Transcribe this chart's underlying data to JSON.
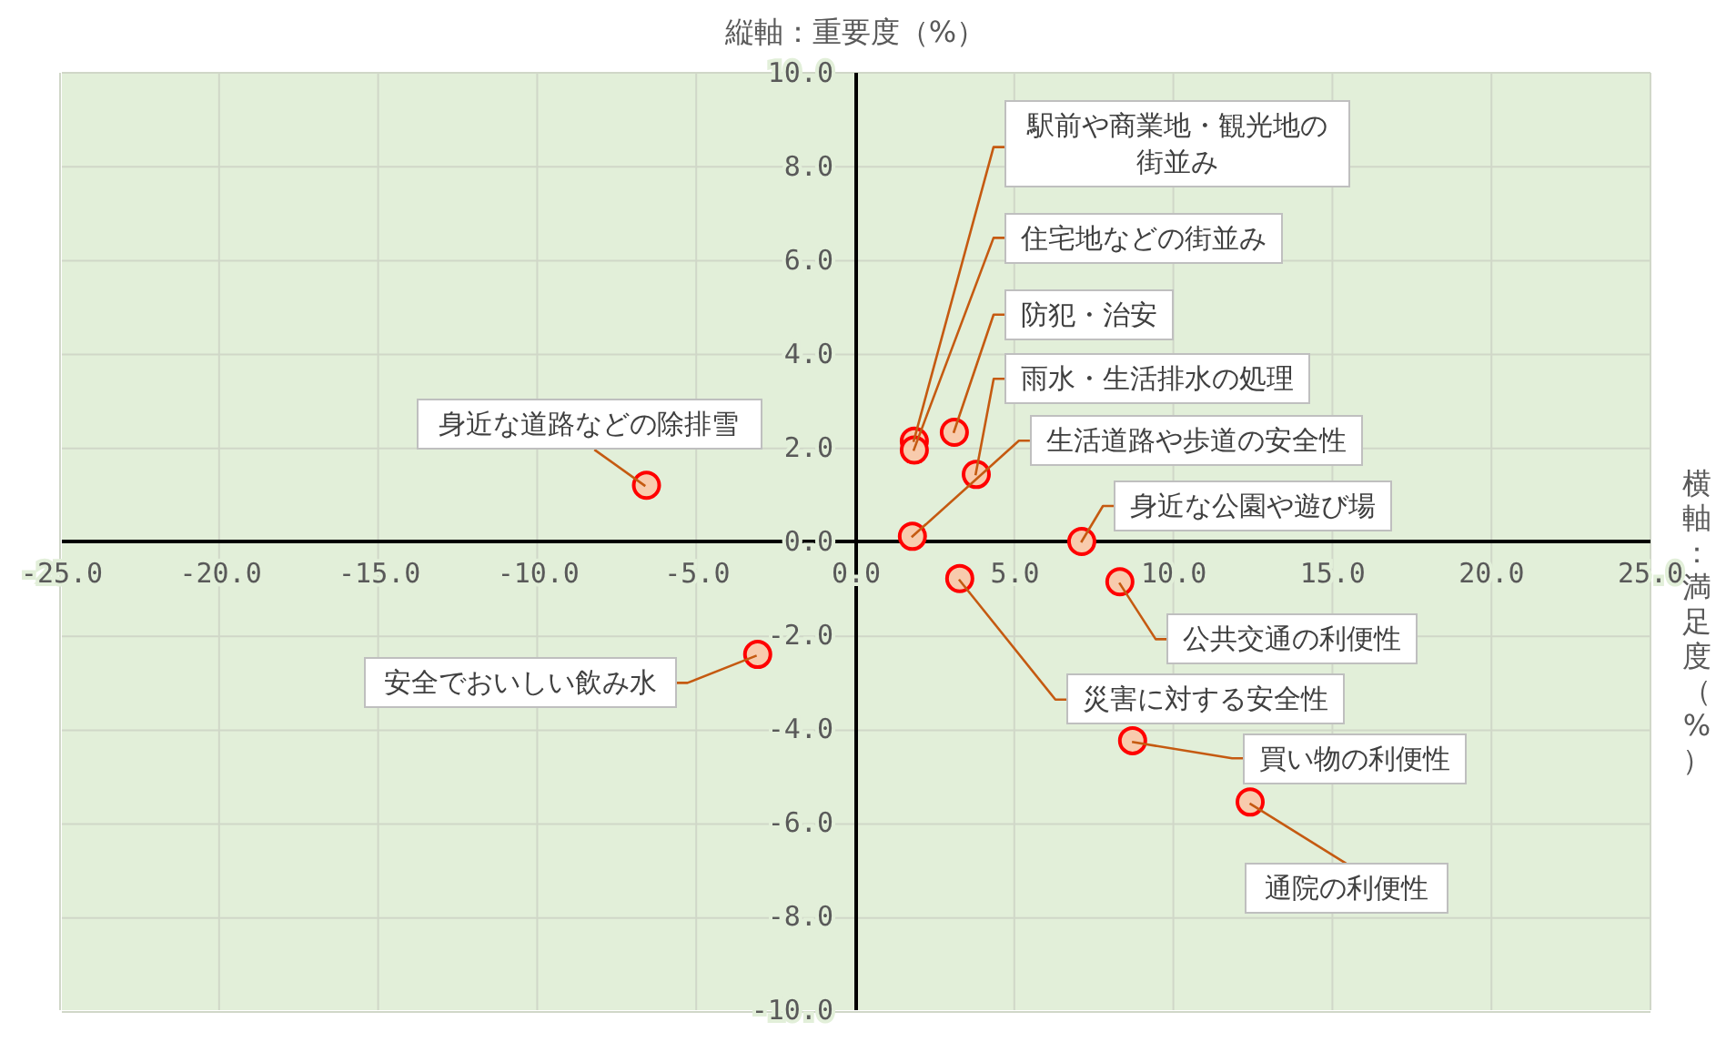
{
  "chart_data": {
    "type": "scatter",
    "xlabel": "横軸：満足度（%）",
    "ylabel": "縦軸：重要度（%）",
    "x": [
      1.83,
      1.83,
      3.09,
      3.78,
      1.77,
      7.1,
      8.3,
      3.26,
      8.7,
      12.4,
      -6.6,
      -3.1
    ],
    "series": [
      {
        "color": "#ff0000",
        "values": [
          2.14,
          1.95,
          2.33,
          1.43,
          0.11,
          0.0,
          -0.86,
          -0.79,
          -4.25,
          -5.56,
          1.2,
          -2.41
        ]
      }
    ],
    "marker": "circle",
    "grid": true,
    "legend": false,
    "xlim": [
      -25,
      25
    ],
    "ylim": [
      -10,
      10
    ],
    "xticks": [
      {
        "value": -25,
        "label": "-25.0"
      },
      {
        "value": -20,
        "label": "-20.0"
      },
      {
        "value": -15,
        "label": "-15.0"
      },
      {
        "value": -10,
        "label": "-10.0"
      },
      {
        "value": -5,
        "label": "-5.0"
      },
      {
        "value": 0,
        "label": "0.0"
      },
      {
        "value": 5,
        "label": "5.0"
      },
      {
        "value": 10,
        "label": "10.0"
      },
      {
        "value": 15,
        "label": "15.0"
      },
      {
        "value": 20,
        "label": "20.0"
      },
      {
        "value": 25,
        "label": "25.0"
      }
    ],
    "yticks": [
      {
        "value": -10,
        "label": "-10.0"
      },
      {
        "value": -8,
        "label": "-8.0"
      },
      {
        "value": -6,
        "label": "-6.0"
      },
      {
        "value": -4,
        "label": "-4.0"
      },
      {
        "value": -2,
        "label": "-2.0"
      },
      {
        "value": 0,
        "label": "0.0"
      },
      {
        "value": 2,
        "label": "2.0"
      },
      {
        "value": 4,
        "label": "4.0"
      },
      {
        "value": 6,
        "label": "6.0"
      },
      {
        "value": 8,
        "label": "8.0"
      },
      {
        "value": 10,
        "label": "10.0"
      }
    ],
    "annotations": [
      {
        "text": "駅前や商業地・観光地の街並み",
        "x": 1.83,
        "y": 2.14
      },
      {
        "text": "住宅地などの街並み",
        "x": 1.83,
        "y": 1.95
      },
      {
        "text": "防犯・治安",
        "x": 3.09,
        "y": 2.33
      },
      {
        "text": "雨水・生活排水の処理",
        "x": 3.78,
        "y": 1.43
      },
      {
        "text": "生活道路や歩道の安全性",
        "x": 1.77,
        "y": 0.11
      },
      {
        "text": "身近な公園や遊び場",
        "x": 7.1,
        "y": 0.0
      },
      {
        "text": "公共交通の利便性",
        "x": 8.3,
        "y": -0.86
      },
      {
        "text": "災害に対する安全性",
        "x": 3.26,
        "y": -0.79
      },
      {
        "text": "買い物の利便性",
        "x": 8.7,
        "y": -4.25
      },
      {
        "text": "通院の利便性",
        "x": 12.4,
        "y": -5.56
      },
      {
        "text": "身近な道路などの除排雪",
        "x": -6.6,
        "y": 1.2
      },
      {
        "text": "安全でおいしい飲み水",
        "x": -3.1,
        "y": -2.41
      }
    ]
  }
}
